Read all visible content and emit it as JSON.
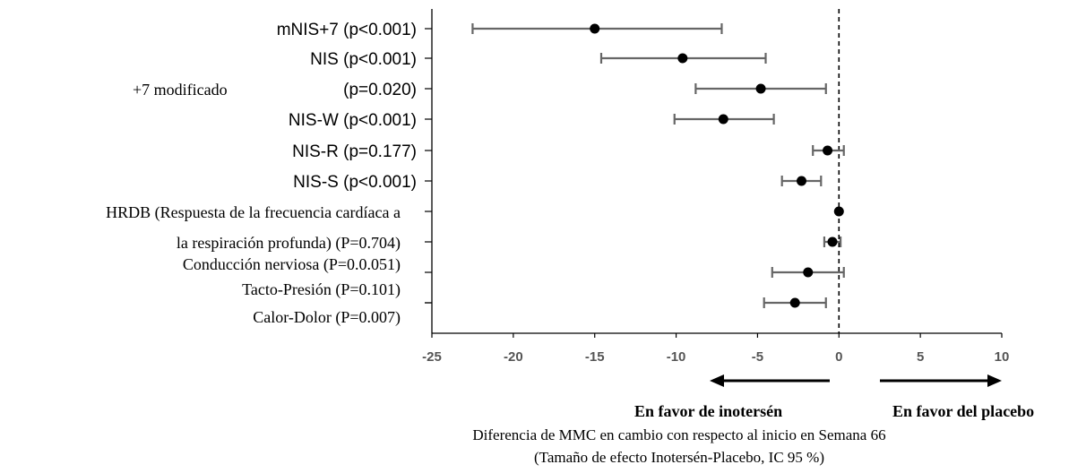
{
  "chart_data": {
    "type": "forest",
    "xlim": [
      -25,
      10
    ],
    "xticks": [
      -25,
      -20,
      -15,
      -10,
      -5,
      0,
      5,
      10
    ],
    "reference_line": 0,
    "grid": false,
    "rows": [
      {
        "labels": [
          "mNIS+7 (p<0.001)"
        ],
        "estimate": -15.0,
        "ci_low": -22.5,
        "ci_high": -7.2
      },
      {
        "labels": [
          "NIS (p<0.001)"
        ],
        "estimate": -9.6,
        "ci_low": -14.6,
        "ci_high": -4.5
      },
      {
        "labels": [
          "+7 modificado",
          "(p=0.020)"
        ],
        "estimate": -4.8,
        "ci_low": -8.8,
        "ci_high": -0.8
      },
      {
        "labels": [
          "NIS-W (p<0.001)"
        ],
        "estimate": -7.1,
        "ci_low": -10.1,
        "ci_high": -4.0
      },
      {
        "labels": [
          "NIS-R (p=0.177)"
        ],
        "estimate": -0.7,
        "ci_low": -1.6,
        "ci_high": 0.3
      },
      {
        "labels": [
          "NIS-S (p<0.001)"
        ],
        "estimate": -2.3,
        "ci_low": -3.5,
        "ci_high": -1.1
      },
      {
        "labels": [
          "HRDB (Respuesta de la frecuencia cardíaca a"
        ],
        "estimate": 0.0,
        "ci_low": 0.0,
        "ci_high": 0.0
      },
      {
        "labels": [
          "la respiración profunda) (P=0.704)"
        ],
        "estimate": -0.4,
        "ci_low": -0.9,
        "ci_high": 0.1
      },
      {
        "labels": [
          "Conducción nerviosa (P=0.0.051)"
        ],
        "estimate": -1.9,
        "ci_low": -4.1,
        "ci_high": 0.3
      },
      {
        "labels": [
          "Tacto-Presión (P=0.101)"
        ],
        "estimate": null,
        "ci_low": null,
        "ci_high": null
      },
      {
        "labels": [
          "Calor-Dolor (P=0.007)"
        ],
        "estimate": -2.7,
        "ci_low": -4.6,
        "ci_high": -0.8
      }
    ],
    "direction_labels": {
      "left": "En favor de inotersén",
      "right": "En favor del placebo"
    },
    "xlabel_lines": [
      "Diferencia de MMC en cambio con respecto al inicio en Semana 66",
      "(Tamaño de efecto Inotersén-Placebo, IC 95 %)"
    ],
    "colors": {
      "point": "#000000",
      "ci_line": "#666666",
      "axis": "#000000",
      "reference": "#000000"
    }
  }
}
